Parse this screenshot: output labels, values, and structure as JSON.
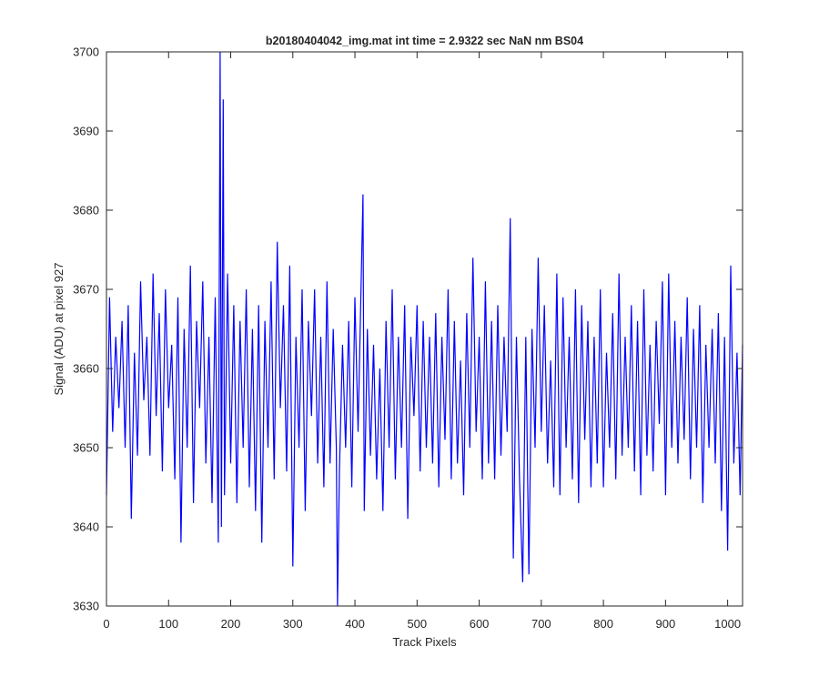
{
  "chart_data": {
    "type": "line",
    "title": "b20180404042_img.mat int time = 2.9322 sec  NaN nm BS04",
    "xlabel": "Track Pixels",
    "ylabel": "Signal (ADU) at pixel 927",
    "xlim": [
      0,
      1024
    ],
    "ylim": [
      3630,
      3700
    ],
    "xticks": [
      0,
      100,
      200,
      300,
      400,
      500,
      600,
      700,
      800,
      900,
      1000
    ],
    "yticks": [
      3630,
      3640,
      3650,
      3660,
      3670,
      3680,
      3690,
      3700
    ],
    "grid": false,
    "legend": "none",
    "series": [
      {
        "color": "#0000ff",
        "x": [
          0,
          5,
          10,
          15,
          20,
          25,
          30,
          35,
          40,
          45,
          50,
          55,
          60,
          65,
          70,
          75,
          80,
          85,
          90,
          95,
          100,
          105,
          110,
          115,
          120,
          125,
          130,
          135,
          140,
          145,
          150,
          155,
          160,
          165,
          170,
          175,
          180,
          183,
          185,
          188,
          190,
          195,
          200,
          205,
          210,
          215,
          220,
          225,
          230,
          235,
          240,
          245,
          250,
          255,
          260,
          265,
          270,
          275,
          280,
          285,
          290,
          295,
          300,
          305,
          310,
          315,
          320,
          325,
          330,
          335,
          340,
          345,
          350,
          355,
          360,
          365,
          370,
          372,
          375,
          380,
          385,
          390,
          395,
          400,
          405,
          410,
          413,
          415,
          420,
          425,
          430,
          435,
          440,
          445,
          450,
          455,
          460,
          465,
          470,
          475,
          480,
          485,
          490,
          495,
          500,
          505,
          510,
          515,
          520,
          525,
          530,
          535,
          540,
          545,
          550,
          555,
          560,
          565,
          570,
          575,
          580,
          585,
          590,
          595,
          600,
          605,
          610,
          615,
          620,
          625,
          630,
          635,
          640,
          645,
          650,
          655,
          660,
          665,
          670,
          675,
          680,
          685,
          690,
          695,
          700,
          705,
          710,
          715,
          720,
          725,
          730,
          735,
          740,
          745,
          750,
          755,
          760,
          765,
          770,
          775,
          780,
          785,
          790,
          795,
          800,
          805,
          810,
          815,
          820,
          825,
          830,
          835,
          840,
          845,
          850,
          855,
          860,
          865,
          870,
          875,
          880,
          885,
          890,
          895,
          900,
          905,
          910,
          915,
          920,
          925,
          930,
          935,
          940,
          945,
          950,
          955,
          960,
          965,
          970,
          975,
          980,
          985,
          990,
          995,
          1000,
          1005,
          1010,
          1015,
          1020,
          1024
        ],
        "y": [
          3644,
          3669,
          3652,
          3664,
          3655,
          3666,
          3650,
          3668,
          3641,
          3662,
          3649,
          3671,
          3656,
          3664,
          3649,
          3672,
          3654,
          3667,
          3647,
          3670,
          3655,
          3663,
          3646,
          3669,
          3638,
          3665,
          3650,
          3673,
          3643,
          3666,
          3655,
          3671,
          3648,
          3664,
          3643,
          3669,
          3638,
          3700,
          3640,
          3694,
          3644,
          3672,
          3648,
          3668,
          3643,
          3666,
          3650,
          3670,
          3645,
          3665,
          3642,
          3668,
          3638,
          3666,
          3650,
          3671,
          3646,
          3676,
          3655,
          3668,
          3647,
          3673,
          3635,
          3664,
          3650,
          3670,
          3642,
          3666,
          3654,
          3670,
          3648,
          3664,
          3645,
          3671,
          3648,
          3665,
          3650,
          3630,
          3647,
          3663,
          3650,
          3666,
          3645,
          3669,
          3652,
          3671,
          3682,
          3642,
          3665,
          3649,
          3663,
          3646,
          3660,
          3642,
          3666,
          3650,
          3670,
          3646,
          3664,
          3650,
          3668,
          3641,
          3664,
          3654,
          3668,
          3647,
          3666,
          3650,
          3664,
          3648,
          3667,
          3645,
          3664,
          3651,
          3670,
          3646,
          3666,
          3648,
          3661,
          3644,
          3667,
          3650,
          3674,
          3652,
          3664,
          3646,
          3671,
          3648,
          3666,
          3646,
          3668,
          3649,
          3664,
          3652,
          3679,
          3636,
          3664,
          3646,
          3633,
          3664,
          3634,
          3665,
          3650,
          3674,
          3652,
          3668,
          3648,
          3661,
          3645,
          3672,
          3644,
          3669,
          3650,
          3664,
          3646,
          3670,
          3643,
          3668,
          3651,
          3666,
          3645,
          3664,
          3648,
          3670,
          3645,
          3662,
          3650,
          3667,
          3646,
          3672,
          3649,
          3664,
          3650,
          3668,
          3647,
          3666,
          3644,
          3670,
          3649,
          3663,
          3647,
          3666,
          3653,
          3671,
          3644,
          3672,
          3650,
          3666,
          3648,
          3664,
          3651,
          3669,
          3646,
          3665,
          3650,
          3668,
          3643,
          3663,
          3650,
          3665,
          3648,
          3667,
          3642,
          3664,
          3637,
          3673,
          3648,
          3662,
          3644,
          3663
        ]
      }
    ]
  }
}
